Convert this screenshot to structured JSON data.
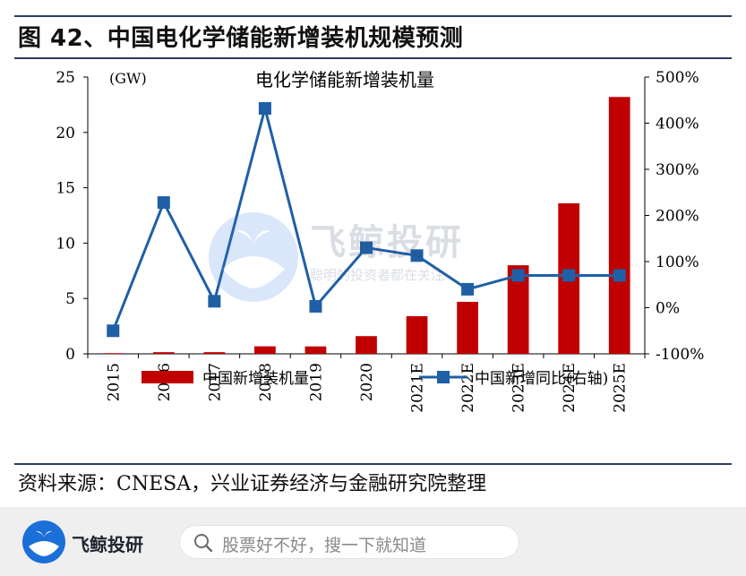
{
  "figure": {
    "title": "图 42、中国电化学储能新增装机规模预测",
    "source": "资料来源：CNESA，兴业证券经济与金融研究院整理"
  },
  "chart_data": {
    "type": "bar",
    "title": "电化学储能新增装机量",
    "y_unit_label": "(GW)",
    "categories": [
      "2015",
      "2016",
      "2017",
      "2018",
      "2019",
      "2020",
      "2021E",
      "2022E",
      "2023E",
      "2024E",
      "2025E"
    ],
    "ylim": [
      0,
      25
    ],
    "yticks": [
      "0",
      "5",
      "10",
      "15",
      "20",
      "25"
    ],
    "y2lim": [
      -100,
      500
    ],
    "y2ticks": [
      "-100%",
      "0%",
      "100%",
      "200%",
      "300%",
      "400%",
      "500%"
    ],
    "series": [
      {
        "name": "中国新增装机量",
        "type": "bar",
        "axis": "left",
        "color": "#c00000",
        "values": [
          0.06,
          0.15,
          0.15,
          0.68,
          0.67,
          1.6,
          3.4,
          4.7,
          8.0,
          13.6,
          23.2
        ]
      },
      {
        "name": "中国新增同比(右轴)",
        "type": "line",
        "axis": "right",
        "color": "#1f5fa6",
        "values": [
          -50,
          228,
          14,
          432,
          3,
          130,
          113,
          40,
          70,
          70,
          70
        ]
      }
    ],
    "legend_position": "bottom",
    "grid": false
  },
  "watermark": {
    "name": "飞鲸投研",
    "slogan": "聪明的投资者都在关注"
  },
  "app_bar": {
    "brand": "飞鲸投研",
    "search_placeholder": "股票好不好，搜一下就知道",
    "colors": {
      "brand_blue": "#1a6fd8",
      "bar_bg": "#efefef"
    }
  }
}
